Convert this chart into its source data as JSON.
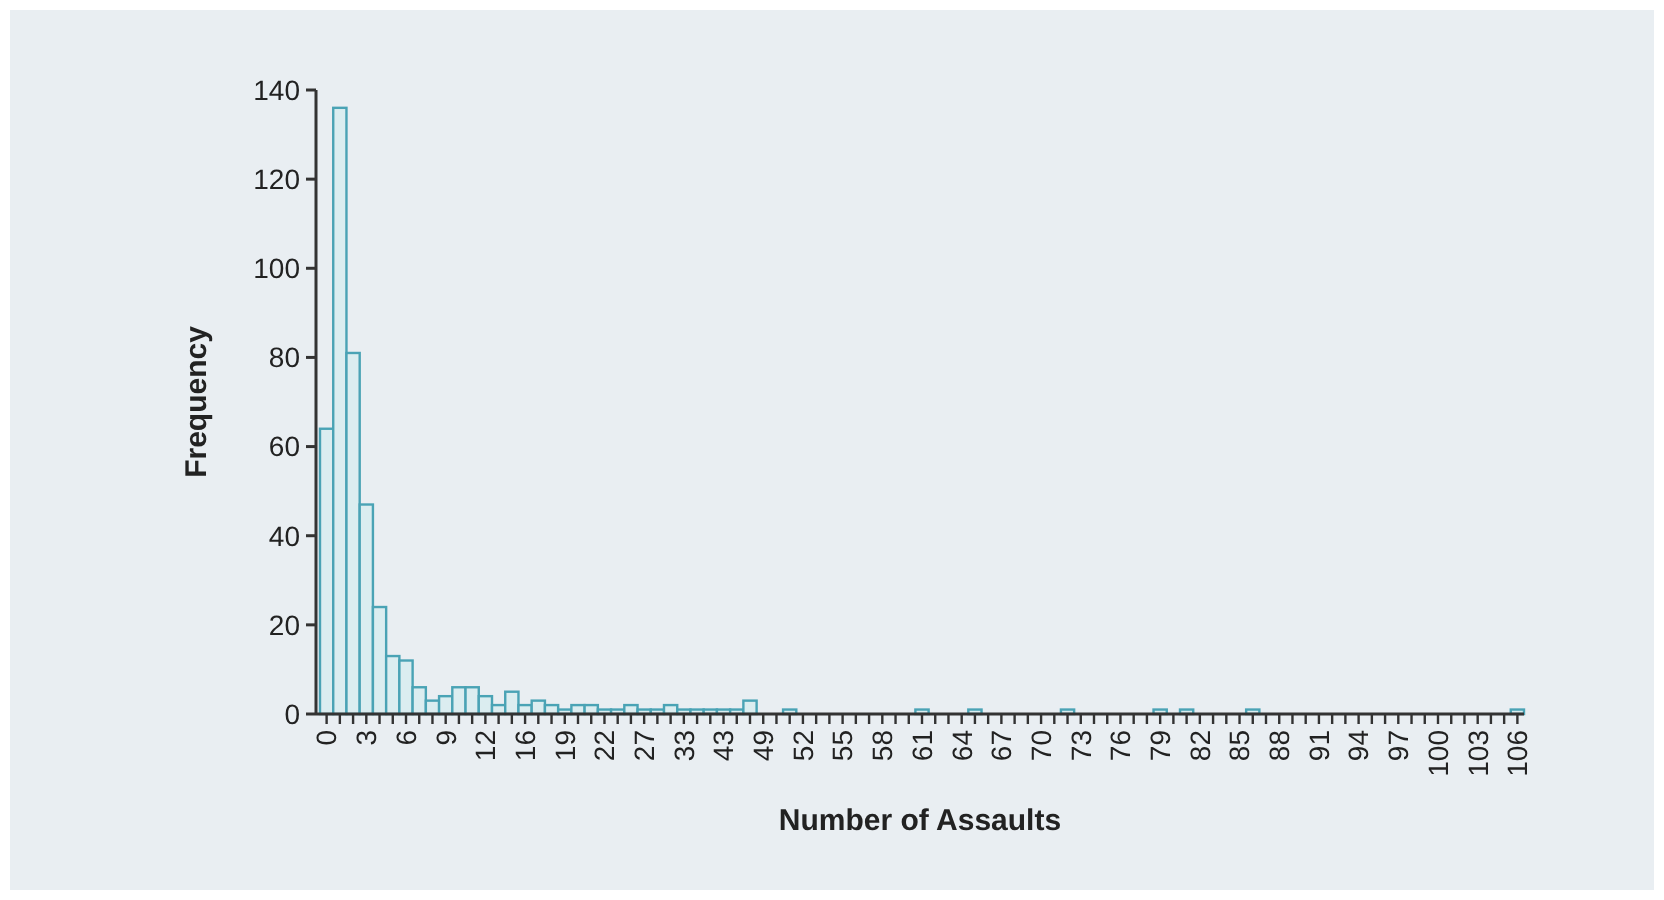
{
  "chart_data": {
    "type": "bar",
    "xlabel": "Number of Assaults",
    "ylabel": "Frequency",
    "color": "#4aa3b5",
    "categories": [
      "0",
      null,
      null,
      "3",
      null,
      null,
      "6",
      null,
      null,
      "9",
      null,
      null,
      "12",
      null,
      null,
      "16",
      null,
      null,
      "19",
      null,
      null,
      "22",
      null,
      null,
      "27",
      null,
      null,
      "33",
      null,
      null,
      "43",
      null,
      null,
      "49",
      null,
      null,
      "52",
      null,
      null,
      "55",
      null,
      null,
      "58",
      null,
      null,
      "61",
      null,
      null,
      "64",
      null,
      null,
      "67",
      null,
      null,
      "70",
      null,
      null,
      "73",
      null,
      null,
      "76",
      null,
      null,
      "79",
      null,
      null,
      "82",
      null,
      null,
      "85",
      null,
      null,
      "88",
      null,
      null,
      "91",
      null,
      null,
      "94",
      null,
      null,
      "97",
      null,
      null,
      "100",
      null,
      null,
      "103",
      null,
      null,
      "106"
    ],
    "values": [
      64,
      136,
      81,
      47,
      24,
      13,
      12,
      6,
      3,
      4,
      6,
      6,
      4,
      2,
      5,
      2,
      3,
      2,
      1,
      2,
      2,
      1,
      1,
      2,
      1,
      1,
      2,
      1,
      1,
      1,
      1,
      1,
      3,
      0,
      0,
      1,
      0,
      0,
      0,
      0,
      0,
      0,
      0,
      0,
      0,
      1,
      0,
      0,
      0,
      1,
      0,
      0,
      0,
      0,
      0,
      0,
      1,
      0,
      0,
      0,
      0,
      0,
      0,
      1,
      0,
      1,
      0,
      0,
      0,
      0,
      1,
      0,
      0,
      0,
      0,
      0,
      0,
      0,
      0,
      0,
      0,
      0,
      0,
      0,
      0,
      0,
      0,
      0,
      0,
      0,
      1
    ],
    "ylim": [
      0,
      140
    ],
    "yticks": [
      0,
      20,
      40,
      60,
      80,
      100,
      120,
      140
    ],
    "grid": false
  }
}
